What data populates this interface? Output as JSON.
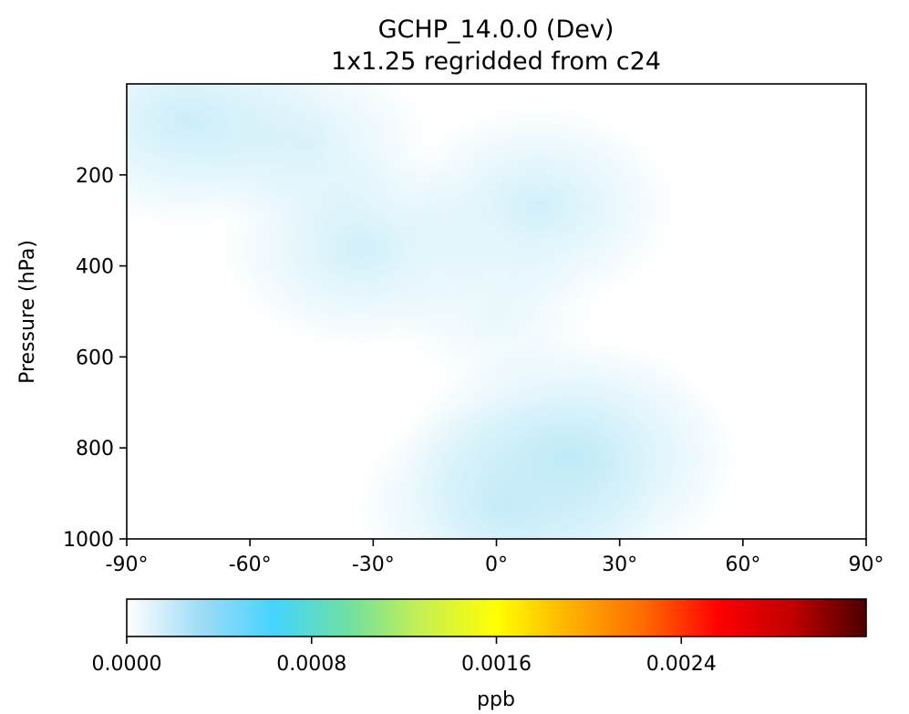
{
  "chart_data": {
    "type": "heatmap",
    "title": "GCHP_14.0.0 (Dev)",
    "subtitle": "1x1.25 regridded from c24",
    "xlabel": "",
    "ylabel": "Pressure (hPa)",
    "xlim": [
      -90,
      90
    ],
    "ylim": [
      1000,
      0
    ],
    "xticks": [
      -90,
      -60,
      -30,
      0,
      30,
      60,
      90
    ],
    "xtick_labels": [
      "-90°",
      "-60°",
      "-30°",
      "0°",
      "30°",
      "60°",
      "90°"
    ],
    "yticks": [
      200,
      400,
      600,
      800,
      1000
    ],
    "ytick_labels": [
      "200",
      "400",
      "600",
      "800",
      "1000"
    ],
    "colorbar": {
      "label": "ppb",
      "range": [
        0.0,
        0.0032
      ],
      "ticks": [
        0.0,
        0.0008,
        0.0016,
        0.0024
      ],
      "tick_labels": [
        "0.0000",
        "0.0008",
        "0.0016",
        "0.0024"
      ],
      "colormap": [
        "#ffffff",
        "#9fdcf7",
        "#44d4fe",
        "#70e0a0",
        "#c8f050",
        "#ffff00",
        "#ffb000",
        "#ff6a00",
        "#ff0000",
        "#c00000",
        "#4a0000"
      ]
    },
    "field_blobs": [
      {
        "lat": -75,
        "pressure": 80,
        "value": 0.00018
      },
      {
        "lat": -45,
        "pressure": 130,
        "value": 0.00012
      },
      {
        "lat": -33,
        "pressure": 360,
        "value": 0.00016
      },
      {
        "lat": 10,
        "pressure": 270,
        "value": 0.00016
      },
      {
        "lat": 18,
        "pressure": 820,
        "value": 0.00022
      },
      {
        "lat": 2,
        "pressure": 930,
        "value": 0.00018
      },
      {
        "lat": 0,
        "pressure": 500,
        "value": 8e-05
      }
    ]
  }
}
